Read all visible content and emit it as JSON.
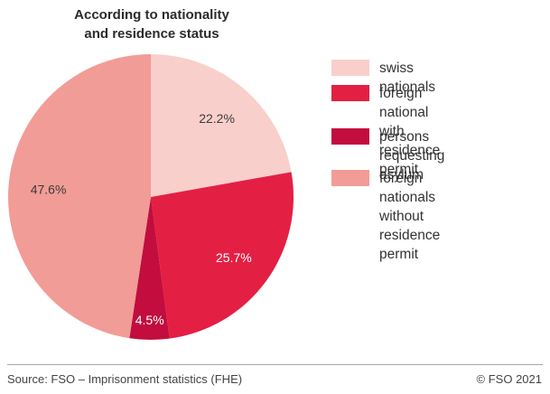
{
  "chart_data": {
    "type": "pie",
    "title_lines": [
      "According to nationality",
      "and residence status"
    ],
    "slices": [
      {
        "label": "swiss nationals",
        "value": 22.2,
        "value_label": "22.2%",
        "color": "#f9cfcb"
      },
      {
        "label": "foreign national\nwith residence permit",
        "value": 25.7,
        "value_label": "25.7%",
        "color": "#e41f44"
      },
      {
        "label": "persons requesting\nasylum",
        "value": 4.5,
        "value_label": "4.5%",
        "color": "#c20d3e"
      },
      {
        "label": "foreign nationals\nwithout residence permit",
        "value": 47.6,
        "value_label": "47.6%",
        "color": "#f19c96"
      }
    ],
    "start_angle": "12 o'clock",
    "direction": "clockwise",
    "legend_position": "right"
  },
  "footer": {
    "source": "Source: FSO – Imprisonment statistics (FHE)",
    "copyright": "© FSO 2021"
  }
}
